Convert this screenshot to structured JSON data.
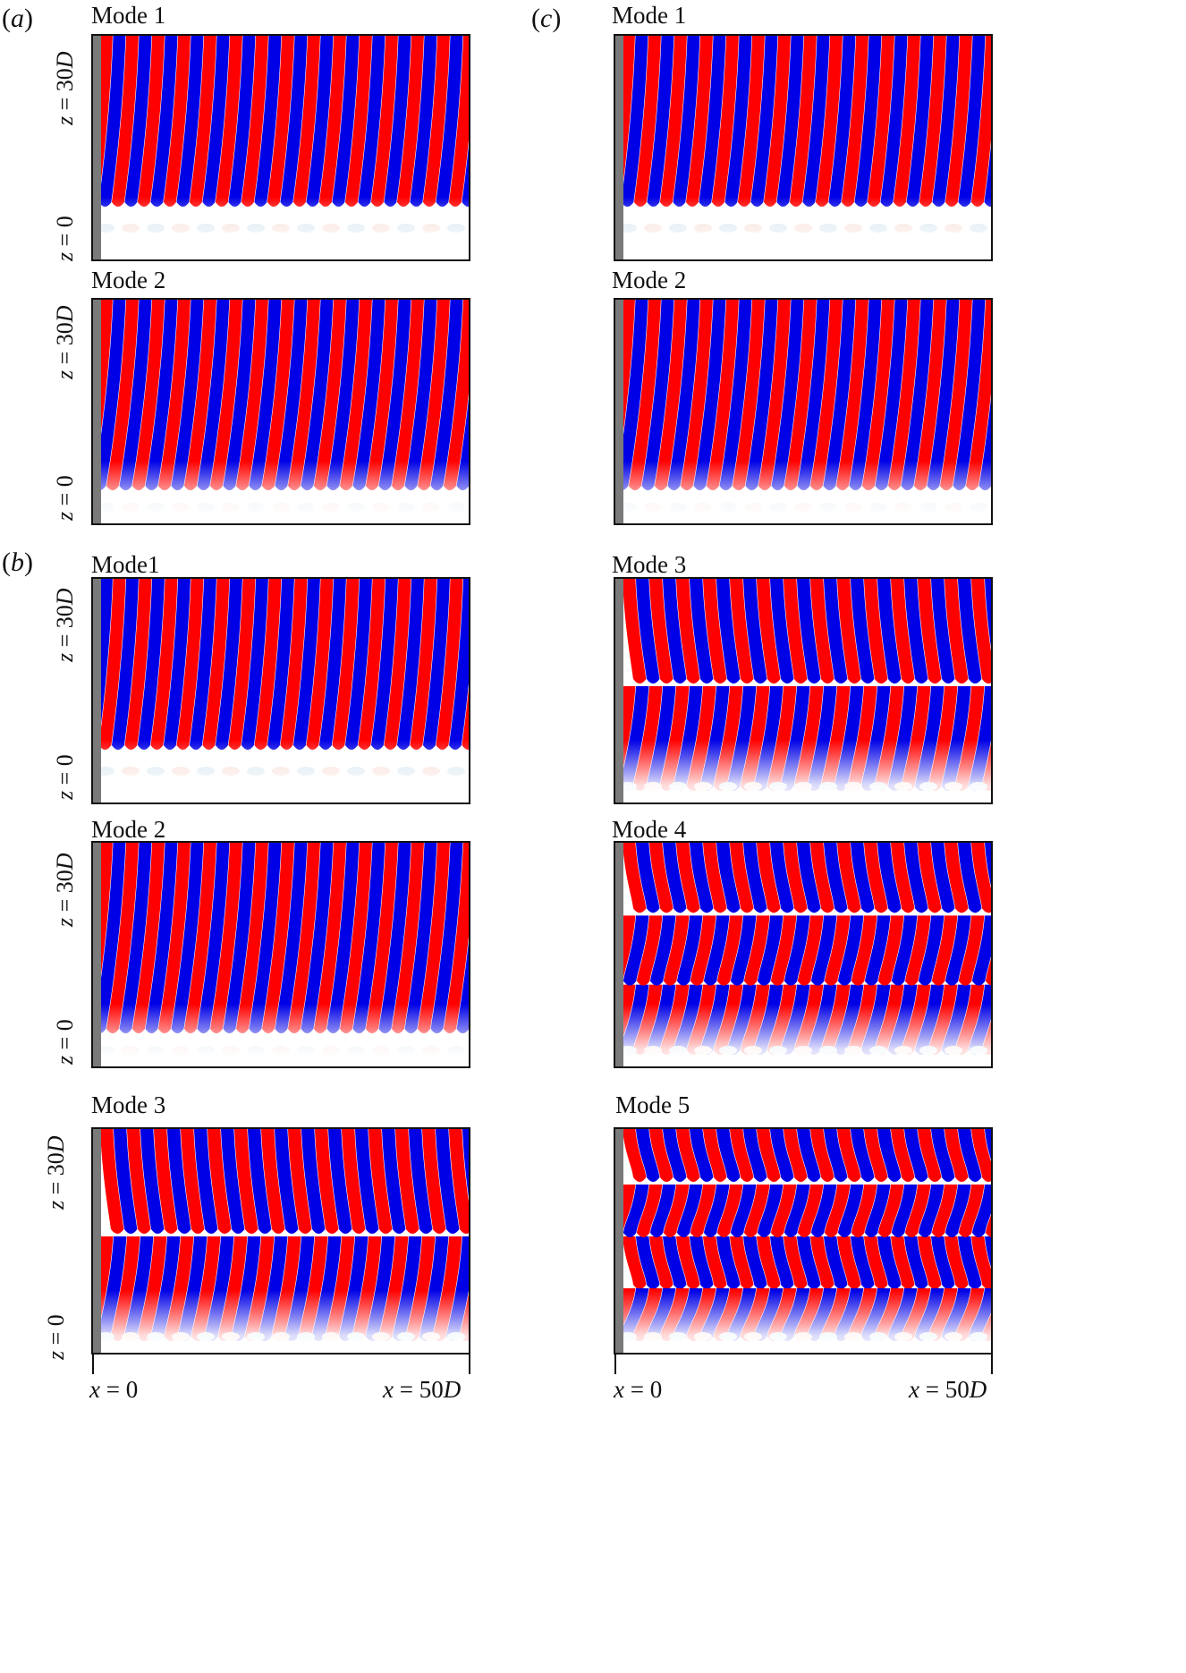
{
  "panels": {
    "a": {
      "letter": "a"
    },
    "b": {
      "letter": "b"
    },
    "c": {
      "letter": "c"
    }
  },
  "axes": {
    "y_top": "30",
    "y_top_unit": "D",
    "y_bottom": "0",
    "z_var": "z",
    "x_var": "x",
    "x_left": "0",
    "x_right": "50",
    "x_right_unit": "D"
  },
  "plots": [
    {
      "panel": "a",
      "title": "Mode 1",
      "mode": 1,
      "variant": 0
    },
    {
      "panel": "a",
      "title": "Mode 2",
      "mode": 2,
      "variant": 0
    },
    {
      "panel": "b",
      "title": "Mode1",
      "mode": 1,
      "variant": 1
    },
    {
      "panel": "b",
      "title": "Mode 2",
      "mode": 2,
      "variant": 1
    },
    {
      "panel": "b",
      "title": "Mode 3",
      "mode": 3,
      "variant": 1
    },
    {
      "panel": "c",
      "title": "Mode 1",
      "mode": 1,
      "variant": 2
    },
    {
      "panel": "c",
      "title": "Mode 2",
      "mode": 2,
      "variant": 2
    },
    {
      "panel": "c",
      "title": "Mode 3",
      "mode": 3,
      "variant": 2
    },
    {
      "panel": "c",
      "title": "Mode 4",
      "mode": 4,
      "variant": 2
    },
    {
      "panel": "c",
      "title": "Mode 5",
      "mode": 5,
      "variant": 2
    }
  ],
  "colors": {
    "positive": "#ff0000",
    "negative": "#0000e6",
    "cylinder": "#7a7a7a",
    "frame": "#111111"
  }
}
